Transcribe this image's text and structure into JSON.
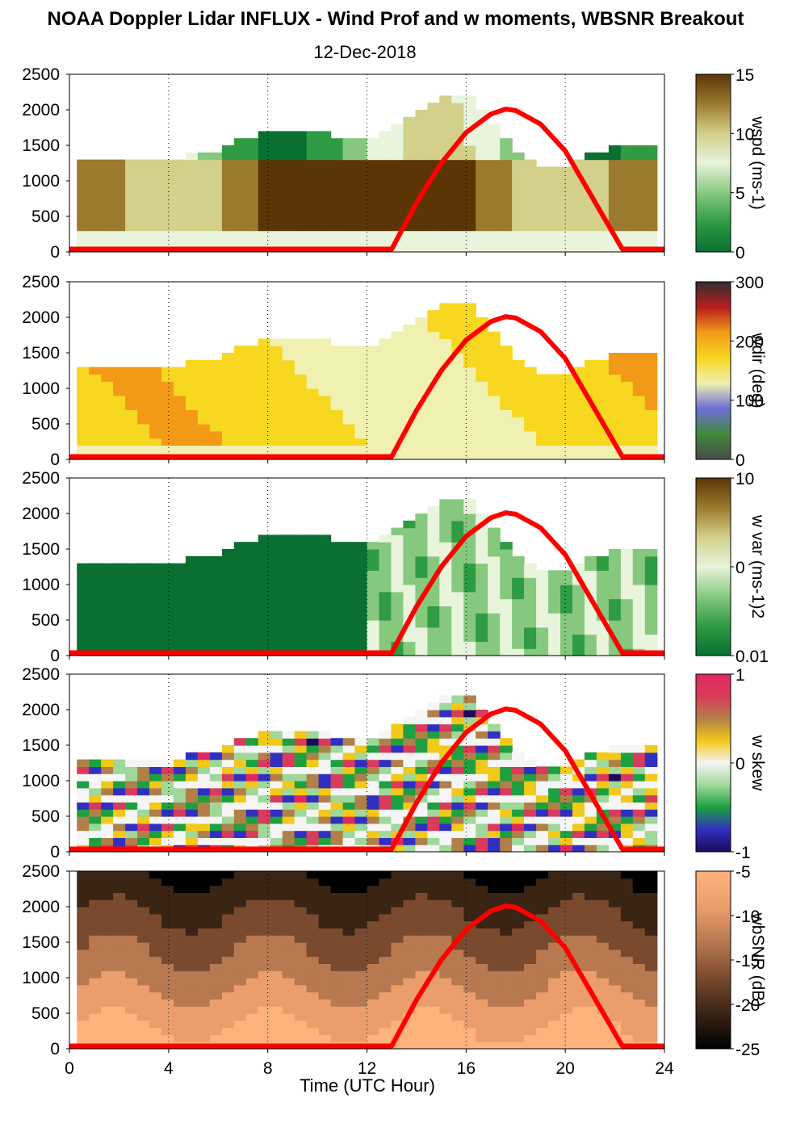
{
  "figure": {
    "title": "NOAA Doppler Lidar INFLUX - Wind Prof and w moments, WBSNR Breakout",
    "subtitle": "12-Dec-2018",
    "xlabel": "Time (UTC Hour)"
  },
  "chart_data": [
    {
      "type": "heatmap",
      "title": "",
      "xlabel": "",
      "ylabel": "",
      "xlim": [
        0,
        24
      ],
      "ylim": [
        0,
        2500
      ],
      "x_ticks": [
        "0",
        "4",
        "8",
        "12",
        "16",
        "20",
        "24"
      ],
      "y_ticks": [
        "0",
        "500",
        "1000",
        "1500",
        "2000",
        "2500"
      ],
      "colorbar": {
        "label": "wspd (ms-1)",
        "ticks": [
          "15",
          "10",
          "5",
          "0"
        ],
        "range": [
          0,
          15
        ],
        "colormap": "green-white-brown"
      },
      "series": [
        {
          "name": "",
          "x": [
            0,
            13,
            14,
            15,
            16,
            17,
            17.6,
            18,
            19,
            20,
            21,
            22.3,
            24
          ],
          "values": [
            40,
            40,
            690,
            1250,
            1680,
            1940,
            2010,
            1990,
            1800,
            1420,
            820,
            40,
            40
          ]
        }
      ],
      "grid": "vertical dotted"
    },
    {
      "type": "heatmap",
      "title": "",
      "xlabel": "",
      "ylabel": "",
      "xlim": [
        0,
        24
      ],
      "ylim": [
        0,
        2500
      ],
      "x_ticks": [
        "0",
        "4",
        "8",
        "12",
        "16",
        "20",
        "24"
      ],
      "y_ticks": [
        "0",
        "500",
        "1000",
        "1500",
        "2000",
        "2500"
      ],
      "colorbar": {
        "label": "wdir (deg)",
        "ticks": [
          "300",
          "200",
          "100",
          "0"
        ],
        "range": [
          0,
          360
        ],
        "colormap": "direction"
      },
      "series": [
        {
          "name": "",
          "x": [
            0,
            13,
            14,
            15,
            16,
            17,
            17.6,
            18,
            19,
            20,
            21,
            22.3,
            24
          ],
          "values": [
            40,
            40,
            690,
            1250,
            1680,
            1940,
            2010,
            1990,
            1800,
            1420,
            820,
            40,
            40
          ]
        }
      ],
      "grid": "vertical dotted"
    },
    {
      "type": "heatmap",
      "title": "",
      "xlabel": "",
      "ylabel": "",
      "xlim": [
        0,
        24
      ],
      "ylim": [
        0,
        2500
      ],
      "x_ticks": [
        "0",
        "4",
        "8",
        "12",
        "16",
        "20",
        "24"
      ],
      "y_ticks": [
        "0",
        "500",
        "1000",
        "1500",
        "2000",
        "2500"
      ],
      "colorbar": {
        "label": "w var (ms-1)2",
        "ticks": [
          "10",
          "0",
          "0.01"
        ],
        "range": [
          0.01,
          10
        ],
        "scale": "log",
        "colormap": "green-white-brown"
      },
      "series": [
        {
          "name": "",
          "x": [
            0,
            13,
            14,
            15,
            16,
            17,
            17.6,
            18,
            19,
            20,
            21,
            22.3,
            24
          ],
          "values": [
            40,
            40,
            690,
            1250,
            1680,
            1940,
            2010,
            1990,
            1800,
            1420,
            820,
            40,
            40
          ]
        }
      ],
      "grid": "vertical dotted"
    },
    {
      "type": "heatmap",
      "title": "",
      "xlabel": "",
      "ylabel": "",
      "xlim": [
        0,
        24
      ],
      "ylim": [
        0,
        2500
      ],
      "x_ticks": [
        "0",
        "4",
        "8",
        "12",
        "16",
        "20",
        "24"
      ],
      "y_ticks": [
        "0",
        "500",
        "1000",
        "1500",
        "2000",
        "2500"
      ],
      "colorbar": {
        "label": "w skew",
        "ticks": [
          "1",
          "0",
          "-1"
        ],
        "range": [
          -1,
          1
        ],
        "colormap": "skew"
      },
      "series": [
        {
          "name": "",
          "x": [
            0,
            13,
            14,
            15,
            16,
            17,
            17.6,
            18,
            19,
            20,
            21,
            22.3,
            24
          ],
          "values": [
            40,
            40,
            690,
            1250,
            1680,
            1940,
            2010,
            1990,
            1800,
            1420,
            820,
            40,
            40
          ]
        }
      ],
      "grid": "vertical dotted"
    },
    {
      "type": "heatmap",
      "title": "",
      "xlabel": "Time (UTC Hour)",
      "ylabel": "",
      "xlim": [
        0,
        24
      ],
      "ylim": [
        0,
        2500
      ],
      "x_ticks": [
        "0",
        "4",
        "8",
        "12",
        "16",
        "20",
        "24"
      ],
      "y_ticks": [
        "0",
        "500",
        "1000",
        "1500",
        "2000",
        "2500"
      ],
      "colorbar": {
        "label": "wbSNR (dB)",
        "ticks": [
          "-5",
          "-10",
          "-15",
          "-20",
          "-25"
        ],
        "range": [
          -25,
          -5
        ],
        "colormap": "copper"
      },
      "series": [
        {
          "name": "",
          "x": [
            0,
            13,
            14,
            15,
            16,
            17,
            17.6,
            18,
            19,
            20,
            21,
            22.3,
            24
          ],
          "values": [
            40,
            40,
            690,
            1250,
            1680,
            1940,
            2010,
            1990,
            1800,
            1420,
            820,
            40,
            40
          ]
        }
      ],
      "grid": "vertical dotted"
    }
  ],
  "colors": {
    "sun_curve": "#ff0000",
    "axis": "#000000"
  }
}
